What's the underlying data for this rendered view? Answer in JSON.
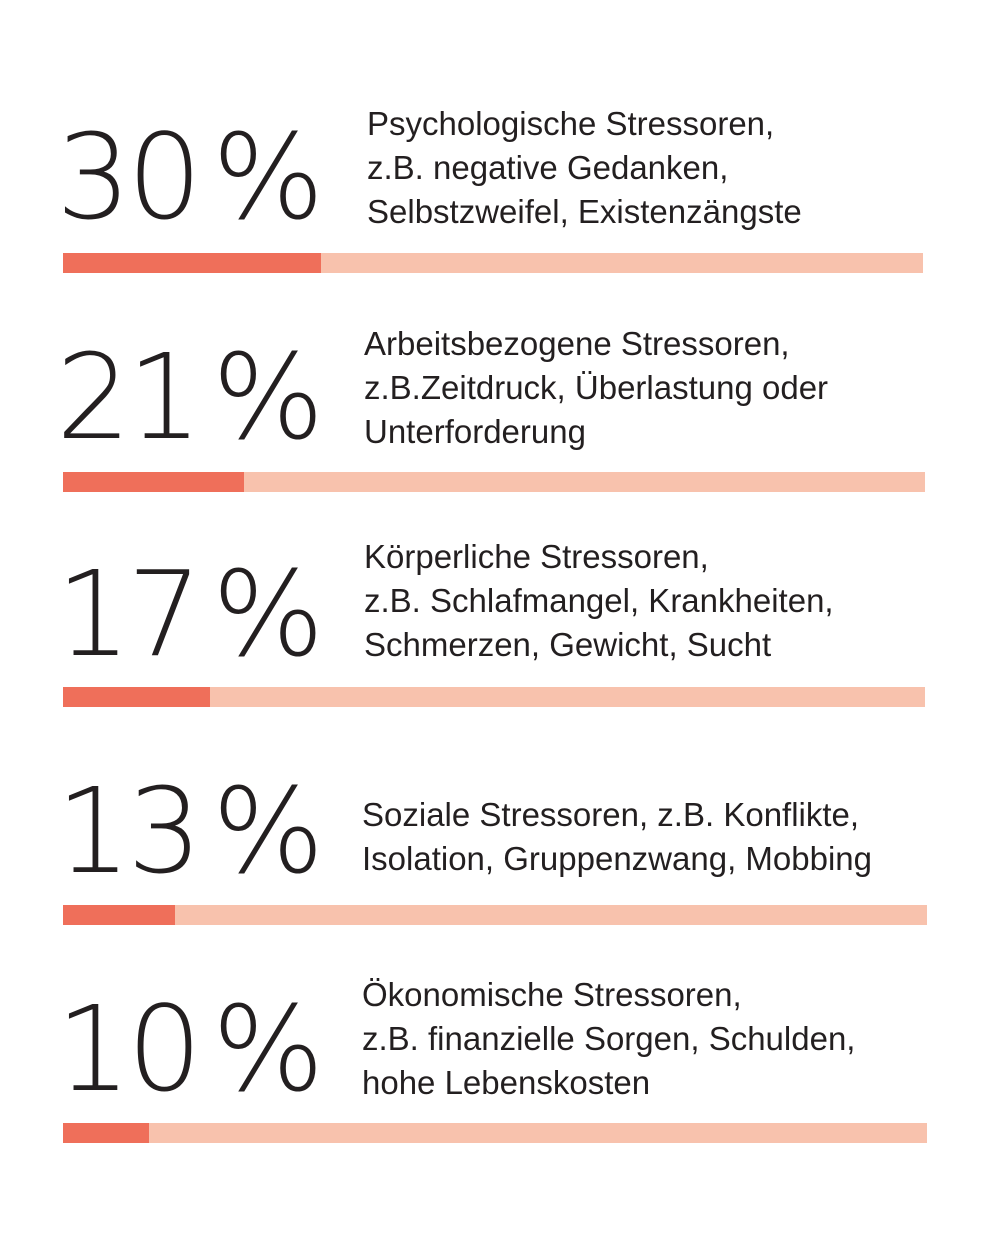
{
  "colors": {
    "fill": "#ef6f5a",
    "track": "#f8c2ad",
    "text": "#231f20"
  },
  "chart_data": {
    "type": "bar",
    "orientation": "horizontal",
    "title": "",
    "categories": [
      "Psychologische Stressoren",
      "Arbeitsbezogene Stressoren",
      "Körperliche Stressoren",
      "Soziale Stressoren",
      "Ökonomische Stressoren"
    ],
    "values": [
      30,
      21,
      17,
      13,
      10
    ],
    "unit": "%",
    "xlim": [
      0,
      100
    ],
    "grid": false,
    "legend": "none",
    "items": [
      {
        "value": 30,
        "label": "30 %",
        "number": "30",
        "sign": "%",
        "lines": [
          "Psychologische Stressoren,",
          "z.B. negative Gedanken,",
          "Selbstzweifel, Existenzängste"
        ]
      },
      {
        "value": 21,
        "label": "21 %",
        "number": "21",
        "sign": "%",
        "lines": [
          "Arbeitsbezogene Stressoren,",
          "z.B.Zeitdruck, Überlastung oder",
          "Unterforderung"
        ]
      },
      {
        "value": 17,
        "label": "17 %",
        "number": "17",
        "sign": "%",
        "lines": [
          "Körperliche Stressoren,",
          "z.B. Schlafmangel, Krankheiten,",
          "Schmerzen, Gewicht, Sucht"
        ]
      },
      {
        "value": 13,
        "label": "13 %",
        "number": "13",
        "sign": "%",
        "lines": [
          "Soziale Stressoren, z.B. Konflikte,",
          "Isolation, Gruppenzwang, Mobbing"
        ]
      },
      {
        "value": 10,
        "label": "10 %",
        "number": "10",
        "sign": "%",
        "lines": [
          "Ökonomische Stressoren,",
          "z.B. finanzielle Sorgen, Schulden,",
          "hohe Lebenskosten"
        ]
      }
    ]
  }
}
